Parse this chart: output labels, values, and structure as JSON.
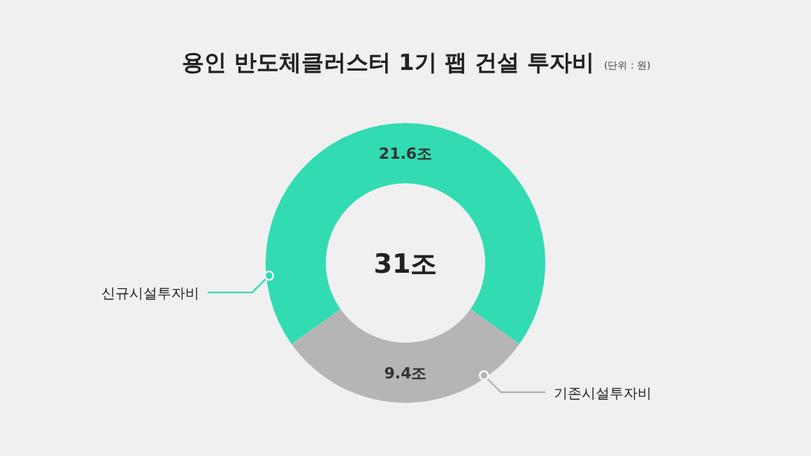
{
  "chart_data": {
    "type": "donut",
    "title": "용인 반도체클러스터 1기 팹 건설 투자비",
    "subtitle": "(단위 : 원)",
    "categories": [
      "신규시설투자비",
      "기존시설투자비"
    ],
    "values": [
      21.6,
      9.4
    ],
    "colors": [
      "#33dbb2",
      "#b5b5b5"
    ],
    "value_labels": [
      "21.6조",
      "9.4조"
    ],
    "annotations": [
      "31조"
    ],
    "legend": false
  }
}
